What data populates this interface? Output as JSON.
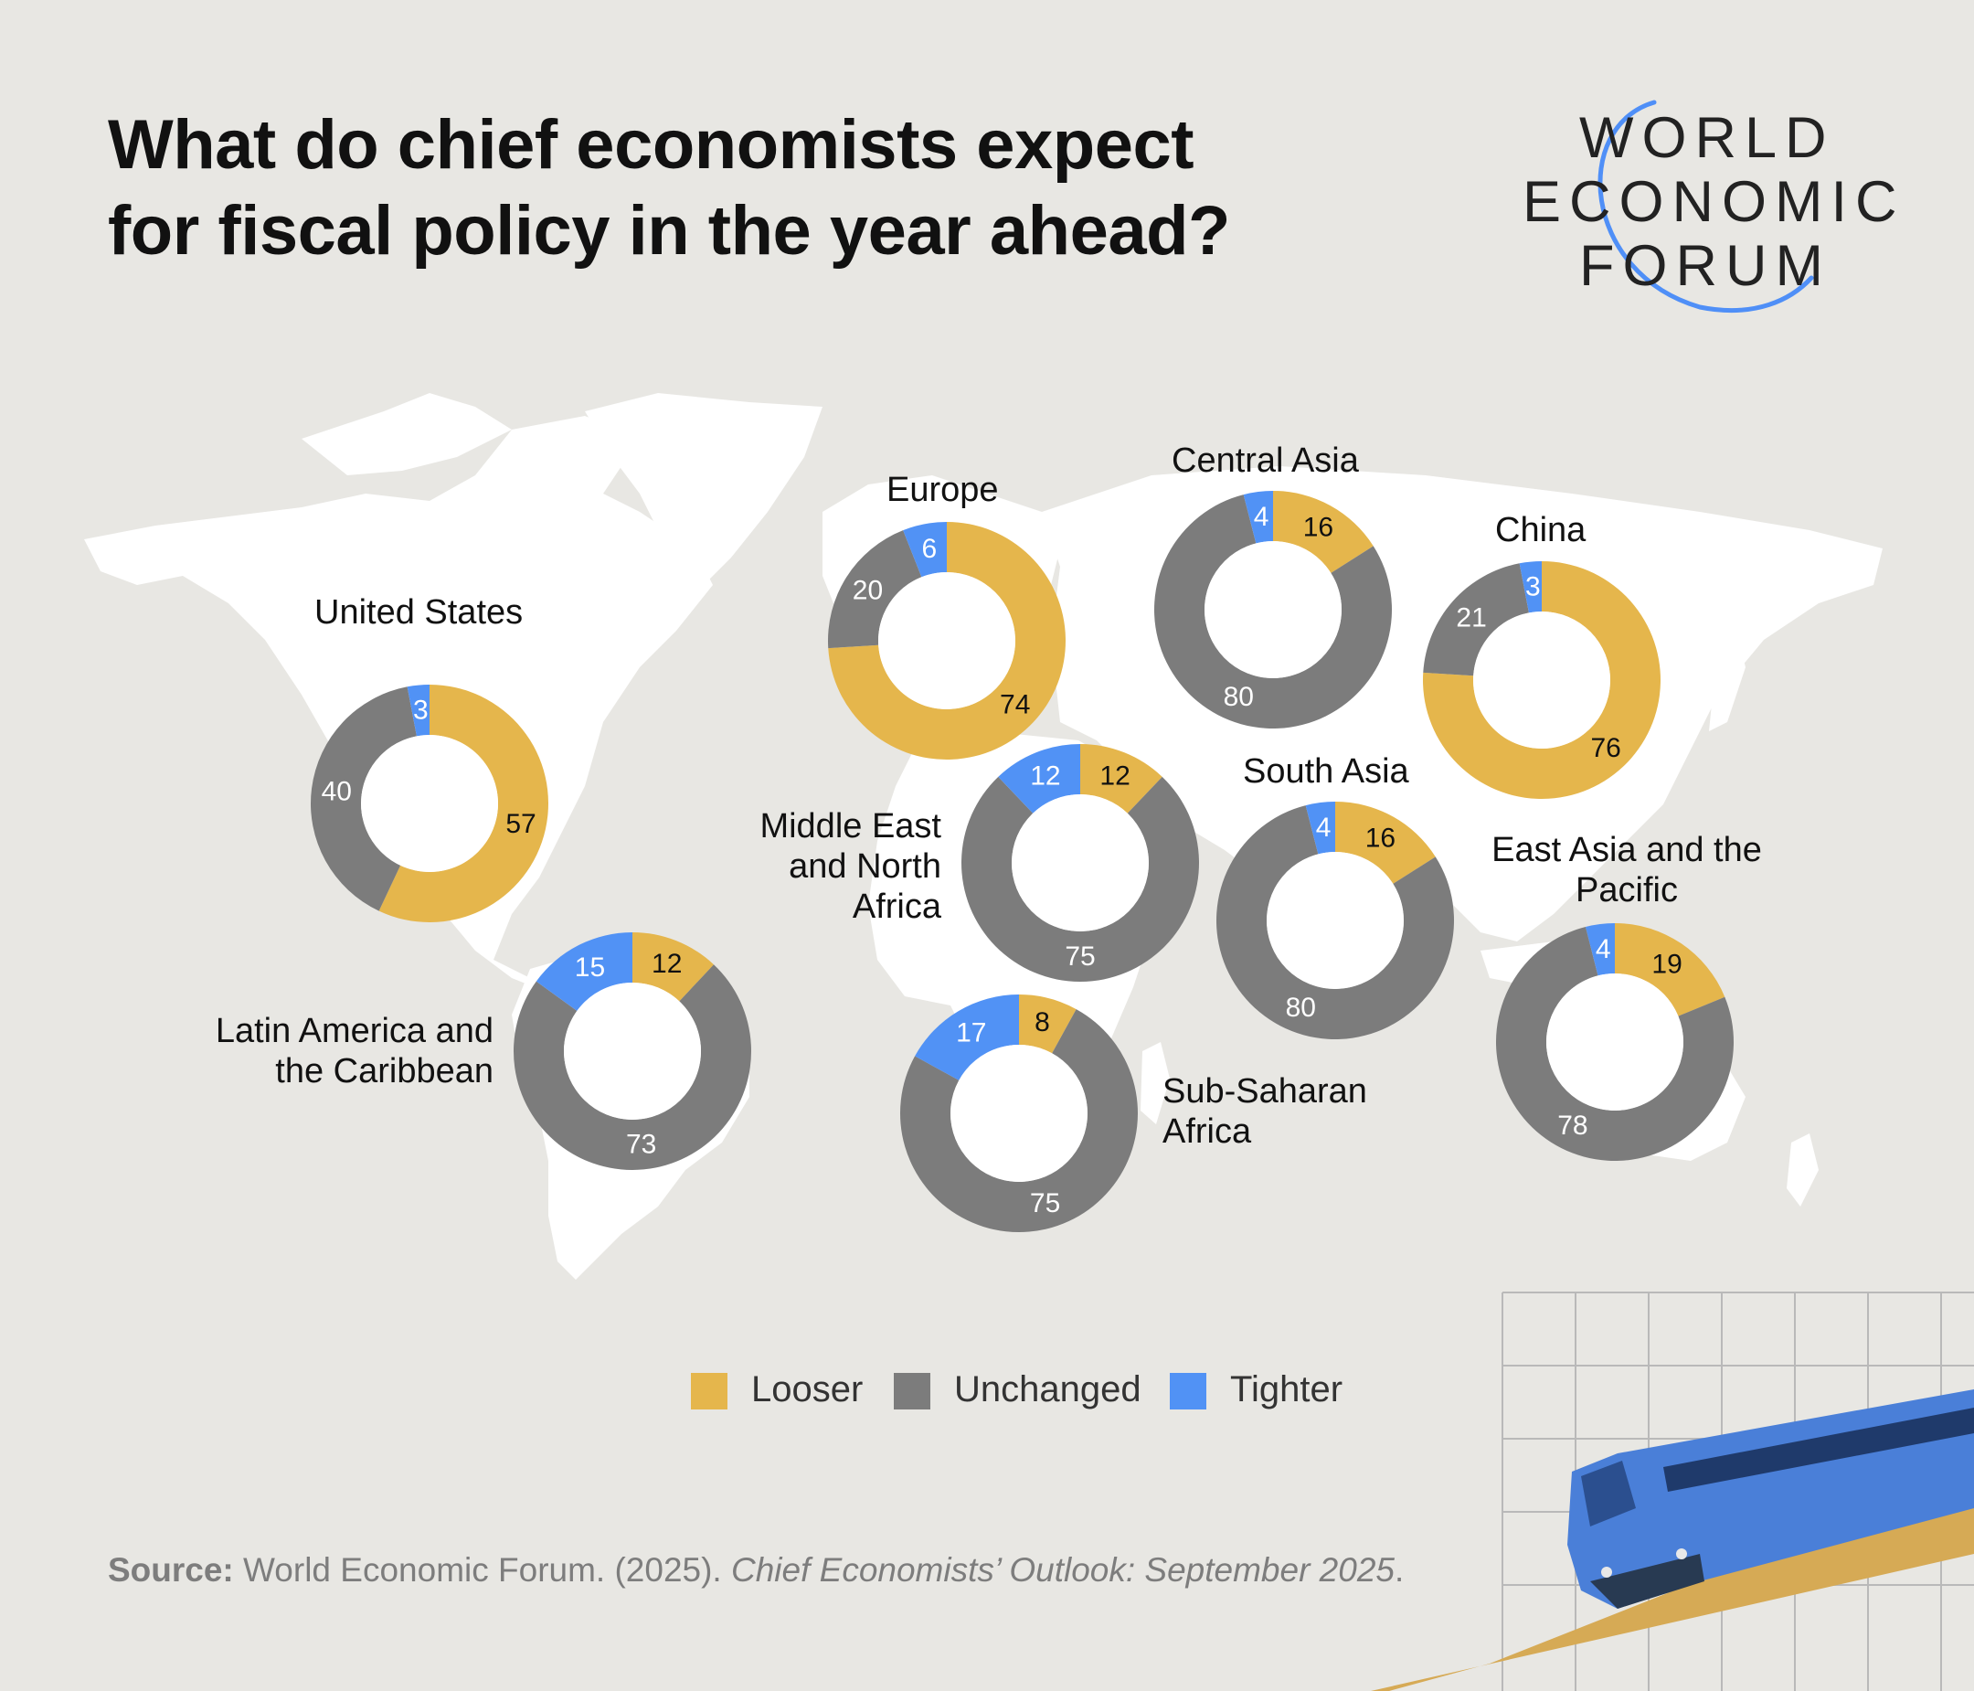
{
  "title_lines": [
    "What do chief economists expect",
    "for fiscal policy in the year ahead?"
  ],
  "logo": {
    "lines": [
      "WORLD",
      "ECONOMIC",
      "FORUM"
    ],
    "arc_color": "#4f8ff7"
  },
  "colors": {
    "looser": "#e5b64c",
    "unchanged": "#7c7c7c",
    "tighter": "#5192f5",
    "background": "#e8e7e3",
    "map": "#ffffff"
  },
  "legend": [
    {
      "key": "looser",
      "label": "Looser"
    },
    {
      "key": "unchanged",
      "label": "Unchanged"
    },
    {
      "key": "tighter",
      "label": "Tighter"
    }
  ],
  "source": {
    "prefix": "Source:",
    "text": "World Economic Forum. (2025).",
    "italic": "Chief Economists’ Outlook: September 2025",
    "suffix": "."
  },
  "chart_data": {
    "type": "donut",
    "series_order": [
      "Looser",
      "Unchanged",
      "Tighter"
    ],
    "regions": [
      {
        "id": "united-states",
        "name": "United States",
        "looser": 57,
        "unchanged": 40,
        "tighter": 3
      },
      {
        "id": "latin-america",
        "name": "Latin America and the Caribbean",
        "looser": 12,
        "unchanged": 73,
        "tighter": 15
      },
      {
        "id": "europe",
        "name": "Europe",
        "looser": 74,
        "unchanged": 20,
        "tighter": 6
      },
      {
        "id": "mena",
        "name": "Middle East and North Africa",
        "looser": 12,
        "unchanged": 75,
        "tighter": 12
      },
      {
        "id": "sub-saharan-africa",
        "name": "Sub-Saharan Africa",
        "looser": 8,
        "unchanged": 75,
        "tighter": 17
      },
      {
        "id": "central-asia",
        "name": "Central Asia",
        "looser": 16,
        "unchanged": 80,
        "tighter": 4
      },
      {
        "id": "south-asia",
        "name": "South Asia",
        "looser": 16,
        "unchanged": 80,
        "tighter": 4
      },
      {
        "id": "china",
        "name": "China",
        "looser": 76,
        "unchanged": 21,
        "tighter": 3
      },
      {
        "id": "east-asia-pacific",
        "name": "East Asia and the Pacific",
        "looser": 19,
        "unchanged": 78,
        "tighter": 4
      }
    ]
  }
}
